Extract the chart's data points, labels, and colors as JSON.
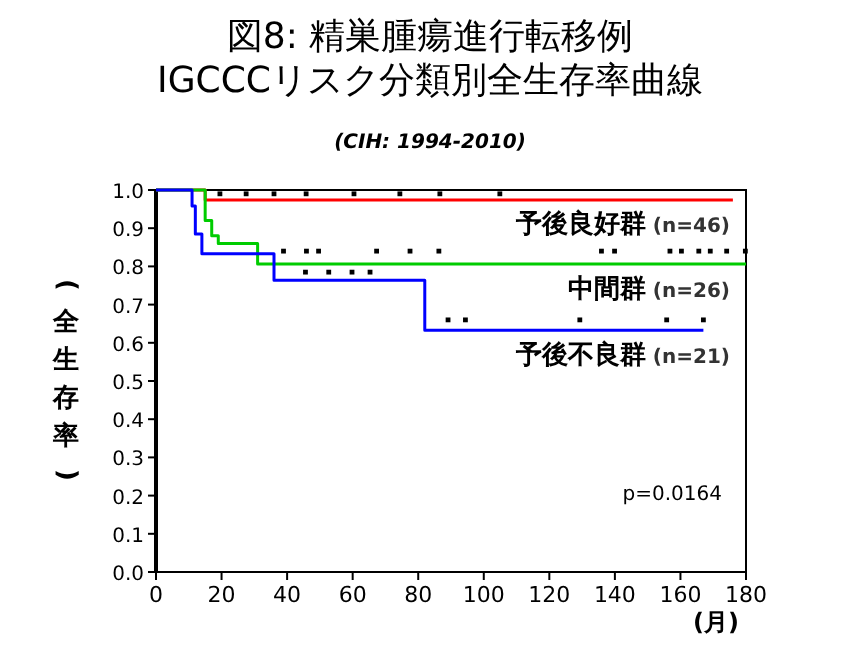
{
  "chart_data": {
    "type": "step",
    "title": "図8: 精巣腫瘍進行転移例\nIGCCCリスク分類別全生存率曲線",
    "subtitle": "(CIH: 1994-2010)",
    "xlabel": "(月)",
    "ylabel": "(全生存率)",
    "xlim": [
      0,
      180
    ],
    "xticks": [
      0,
      20,
      40,
      60,
      80,
      100,
      120,
      140,
      160,
      180
    ],
    "ylim": [
      0,
      1
    ],
    "yticks": [
      {
        "value": 0,
        "label": "0.0"
      },
      {
        "value": 0.1,
        "label": "0.1"
      },
      {
        "value": 0.2,
        "label": "0.2"
      },
      {
        "value": 0.3,
        "label": "0.3"
      },
      {
        "value": 0.4,
        "label": "0.4"
      },
      {
        "value": 0.5,
        "label": "0.5"
      },
      {
        "value": 0.6,
        "label": "0.6"
      },
      {
        "value": 0.7,
        "label": "0.7"
      },
      {
        "value": 0.8,
        "label": "0.8"
      },
      {
        "value": 0.9,
        "label": "0.9"
      },
      {
        "value": 1,
        "label": "1.0"
      }
    ],
    "grid": false,
    "legend": false,
    "series": [
      {
        "name": "予後良好群 (n=46)",
        "color": "#ff0000",
        "x": [
          0,
          15,
          176
        ],
        "values": [
          1,
          0.974,
          0.974
        ]
      },
      {
        "name": "中間群 (n=26)",
        "color": "#00cc00",
        "x": [
          0,
          15,
          17,
          19,
          31,
          180
        ],
        "values": [
          1,
          0.92,
          0.88,
          0.86,
          0.806,
          0.806
        ]
      },
      {
        "name": "予後不良群 (n=21)",
        "color": "#0000ff",
        "x": [
          0,
          11,
          12,
          14,
          36,
          82,
          167
        ],
        "values": [
          1,
          0.958,
          0.885,
          0.833,
          0.764,
          0.633,
          0.633
        ]
      },
      {
        "type": "scatter",
        "color": "#000000",
        "marker": "square",
        "x": [
          19.5,
          27.5,
          36,
          45.8,
          60.4,
          74.4,
          86.6,
          104.9,
          38.9,
          45.9,
          49.6,
          67.3,
          77.5,
          86.3,
          135.9,
          139.9,
          156.8,
          160.3,
          165.6,
          169.1,
          174.1,
          179.8,
          45.6,
          52.7,
          59.8,
          65.3,
          89.1,
          94.4,
          129.3,
          155.8,
          167
        ],
        "values": [
          0.99,
          0.99,
          0.99,
          0.99,
          0.99,
          0.99,
          0.99,
          0.99,
          0.84,
          0.84,
          0.84,
          0.84,
          0.84,
          0.84,
          0.84,
          0.84,
          0.84,
          0.84,
          0.84,
          0.84,
          0.84,
          0.84,
          0.785,
          0.785,
          0.785,
          0.785,
          0.66,
          0.66,
          0.66,
          0.66,
          0.66
        ]
      }
    ],
    "annotations": [
      "p=0.0164"
    ]
  }
}
